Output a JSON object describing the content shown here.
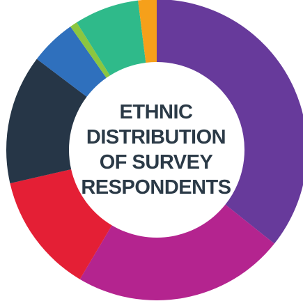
{
  "chart_data": {
    "type": "pie",
    "donut": true,
    "title_lines": [
      "ETHNIC",
      "DISTRIBUTION",
      "OF SURVEY",
      "RESPONDENTS"
    ],
    "legend": "none",
    "slices": [
      {
        "value": 36,
        "color": "#673a9b"
      },
      {
        "value": 23,
        "color": "#b4248f"
      },
      {
        "value": 13,
        "color": "#e41f35"
      },
      {
        "value": 14,
        "color": "#263647"
      },
      {
        "value": 5,
        "color": "#2f70bd"
      },
      {
        "value": 0.8,
        "color": "#8cc63f"
      },
      {
        "value": 7,
        "color": "#2fba8a"
      },
      {
        "value": 2,
        "color": "#f6a01a"
      }
    ]
  }
}
